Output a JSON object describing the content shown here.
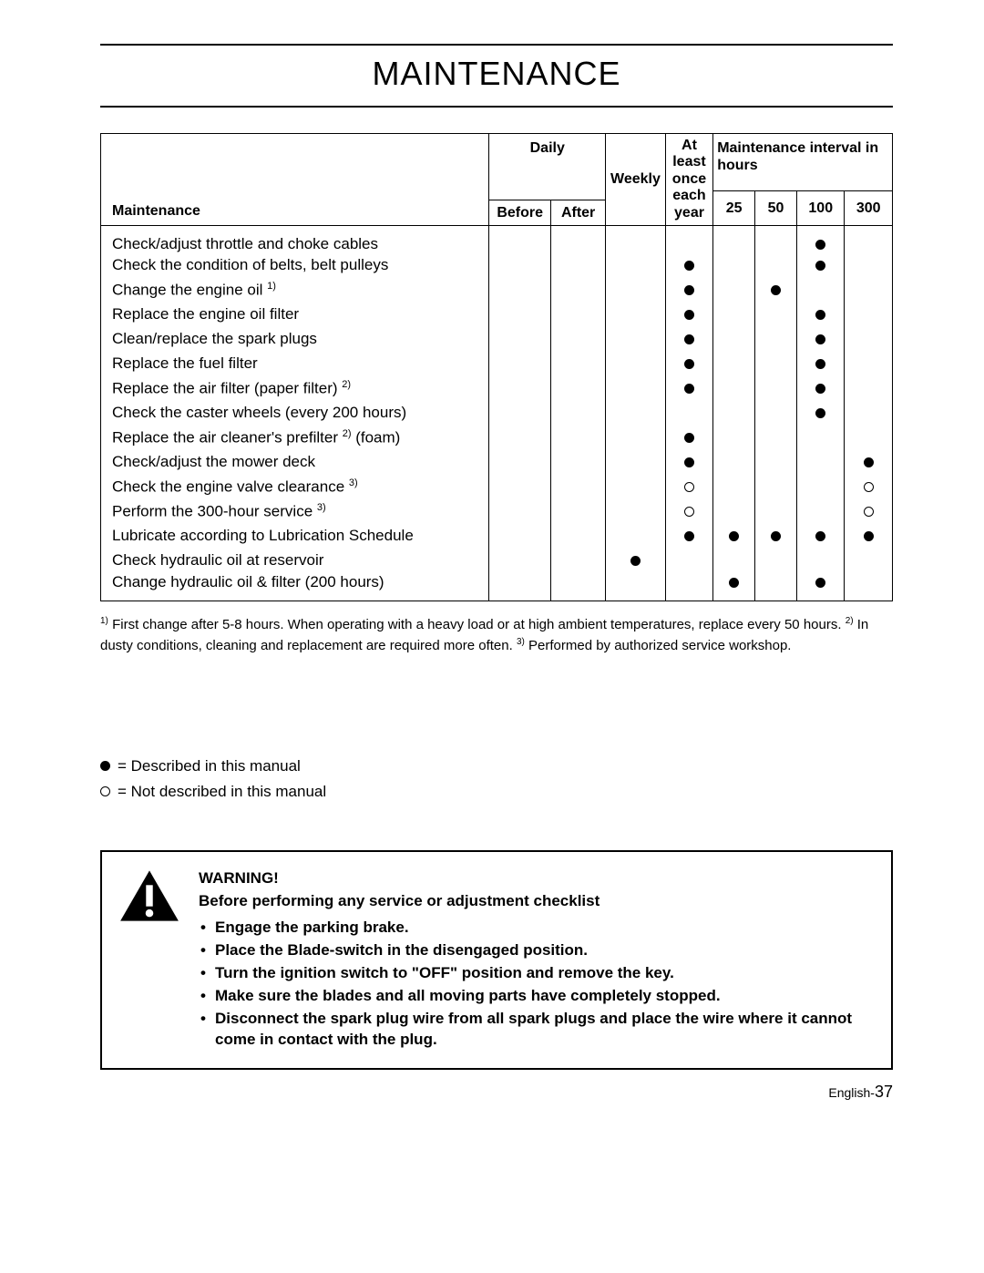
{
  "title": "MAINTENANCE",
  "table": {
    "header": {
      "maintenance": "Maintenance",
      "daily": "Daily",
      "before": "Before",
      "after": "After",
      "weekly": "Weekly",
      "yearly_l1": "At",
      "yearly_l2": "least",
      "yearly_l3": "once",
      "yearly_l4": "each",
      "yearly_l5": "year",
      "interval": "Maintenance interval in hours",
      "h25": "25",
      "h50": "50",
      "h100": "100",
      "h300": "300"
    },
    "col_widths": {
      "label": 390,
      "before": 62,
      "after": 55,
      "weekly": 60,
      "yearly": 48,
      "h25": 42,
      "h50": 42,
      "h100": 48,
      "h300": 48
    },
    "rows": [
      {
        "label": "Check/adjust throttle and choke cables",
        "marks": [
          "",
          "",
          "",
          "",
          "",
          "",
          "filled",
          ""
        ]
      },
      {
        "label": "Check the condition of belts, belt pulleys",
        "marks": [
          "",
          "",
          "",
          "filled",
          "",
          "",
          "filled",
          ""
        ]
      },
      {
        "label": "Change the engine oil",
        "sup": "1)",
        "marks": [
          "",
          "",
          "",
          "filled",
          "",
          "filled",
          "",
          ""
        ]
      },
      {
        "label": "Replace the engine oil filter",
        "marks": [
          "",
          "",
          "",
          "filled",
          "",
          "",
          "filled",
          ""
        ]
      },
      {
        "label": "Clean/replace the spark plugs",
        "marks": [
          "",
          "",
          "",
          "filled",
          "",
          "",
          "filled",
          ""
        ]
      },
      {
        "label": "Replace the fuel filter",
        "marks": [
          "",
          "",
          "",
          "filled",
          "",
          "",
          "filled",
          ""
        ]
      },
      {
        "label": "Replace the air filter (paper filter)",
        "sup": "2)",
        "marks": [
          "",
          "",
          "",
          "filled",
          "",
          "",
          "filled",
          ""
        ]
      },
      {
        "label": "Check the caster wheels (every 200 hours)",
        "marks": [
          "",
          "",
          "",
          "",
          "",
          "",
          "filled",
          ""
        ]
      },
      {
        "label": "Replace the air cleaner's prefilter",
        "sup": "2)",
        "suffix": " (foam)",
        "marks": [
          "",
          "",
          "",
          "filled",
          "",
          "",
          "",
          ""
        ]
      },
      {
        "label": "Check/adjust the mower deck",
        "marks": [
          "",
          "",
          "",
          "filled",
          "",
          "",
          "",
          "filled"
        ]
      },
      {
        "label": "Check the engine valve clearance",
        "sup": "3)",
        "marks": [
          "",
          "",
          "",
          "open",
          "",
          "",
          "",
          "open"
        ]
      },
      {
        "label": "Perform the 300-hour service",
        "sup": "3)",
        "marks": [
          "",
          "",
          "",
          "open",
          "",
          "",
          "",
          "open"
        ]
      },
      {
        "label": "Lubricate according to Lubrication Schedule",
        "marks": [
          "",
          "",
          "",
          "filled",
          "filled",
          "filled",
          "filled",
          "filled"
        ]
      },
      {
        "label": "Check hydraulic oil at reservoir",
        "marks": [
          "",
          "",
          "filled",
          "",
          "",
          "",
          "",
          ""
        ]
      },
      {
        "label": "Change hydraulic oil & filter (200 hours)",
        "marks": [
          "",
          "",
          "",
          "",
          "filled",
          "",
          "filled",
          ""
        ]
      }
    ]
  },
  "footnotes": {
    "n1_sup": "1)",
    "n1": " First change after 5-8 hours. When operating with a heavy load or at high ambient temperatures, replace every 50 hours. ",
    "n2_sup": "2)",
    "n2": " In dusty conditions, cleaning and replacement are required more often. ",
    "n3_sup": "3)",
    "n3": " Performed by authorized service workshop."
  },
  "legend": {
    "filled": " = Described in this manual",
    "open": " = Not described in this manual"
  },
  "warning": {
    "heading": "WARNING!",
    "sub": "Before performing any service or adjustment checklist",
    "items": [
      "Engage the parking brake.",
      "Place the Blade-switch in the disengaged position.",
      "Turn the ignition switch to \"OFF\" position and remove the key.",
      "Make sure the blades and all moving parts have completely stopped.",
      "Disconnect the spark plug wire from all spark plugs and place the wire where it cannot come in contact with the plug."
    ]
  },
  "footer": {
    "lang": "English-",
    "page": "37"
  }
}
